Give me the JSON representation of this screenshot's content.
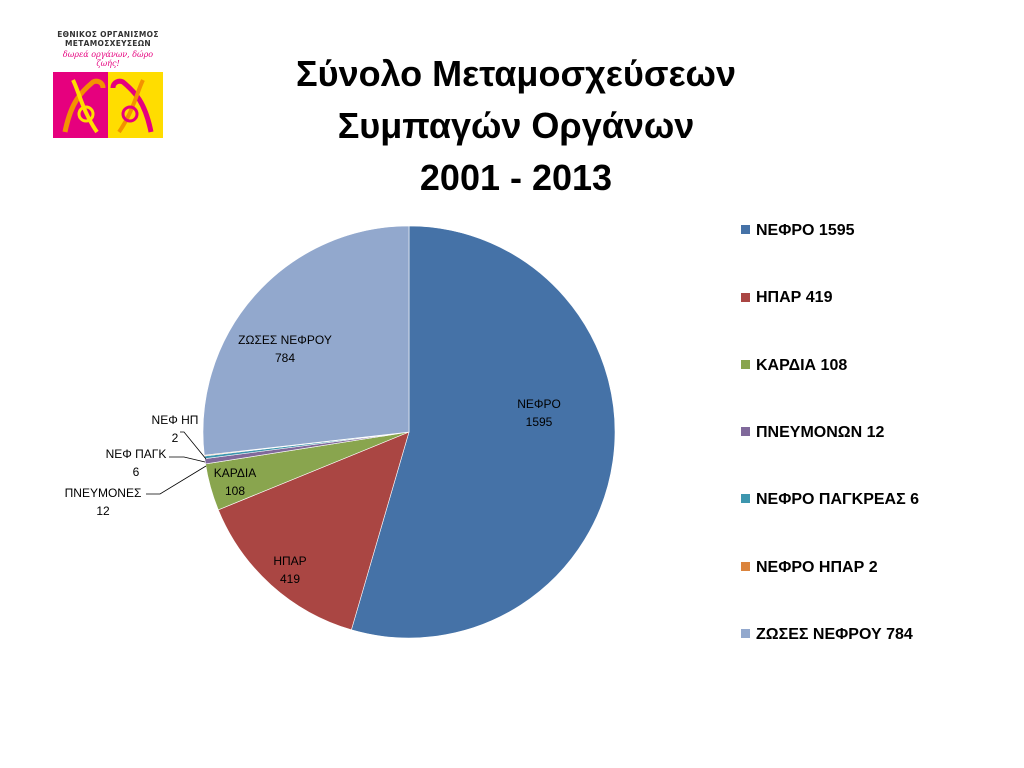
{
  "logo": {
    "org_line1": "ΕΘΝΙΚΟΣ ΟΡΓΑΝΙΣΜΟΣ",
    "org_line2": "ΜΕΤΑΜΟΣΧΕΥΣΕΩΝ",
    "motto": "δωρεά οργάνων, δώρο ζωής!",
    "colors": {
      "magenta": "#e6007e",
      "yellow": "#ffdd00",
      "orange": "#f39200"
    }
  },
  "title_lines": [
    "Σύνολο Μεταμοσχεύσεων",
    "Συμπαγών Οργάνων",
    "2001 - 2013"
  ],
  "chart_data": {
    "type": "pie",
    "title": "Σύνολο Μεταμοσχεύσεων Συμπαγών Οργάνων 2001 - 2013",
    "legend_position": "right",
    "slices": [
      {
        "label": "ΝΕΦΡΟ",
        "value": 1595,
        "legend": "ΝΕΦΡΟ 1595",
        "data_label": [
          "ΝΕΦΡΟ",
          "1595"
        ],
        "color": "#4572a7"
      },
      {
        "label": "ΗΠΑΡ",
        "value": 419,
        "legend": "ΗΠΑΡ 419",
        "data_label": [
          "ΗΠΑΡ",
          "419"
        ],
        "color": "#aa4643"
      },
      {
        "label": "ΚΑΡΔΙΑ",
        "value": 108,
        "legend": "ΚΑΡΔΙΑ 108",
        "data_label": [
          "ΚΑΡΔΙΑ",
          "108"
        ],
        "color": "#89a54e"
      },
      {
        "label": "ΠΝΕΥΜΟΝΩΝ",
        "value": 12,
        "legend": "ΠΝΕΥΜΟΝΩΝ 12",
        "data_label": [
          "ΠΝΕΥΜΟΝΕΣ",
          "12"
        ],
        "color": "#80699b"
      },
      {
        "label": "ΝΕΦΡΟ ΠΑΓΚΡΕΑΣ",
        "value": 6,
        "legend": "ΝΕΦΡΟ ΠΑΓΚΡΕΑΣ 6",
        "data_label": [
          "ΝΕΦ ΠΑΓΚ",
          "6"
        ],
        "color": "#3d96ae"
      },
      {
        "label": "ΝΕΦΡΟ ΗΠΑΡ",
        "value": 2,
        "legend": "ΝΕΦΡΟ ΗΠΑΡ 2",
        "data_label": [
          "ΝΕΦ ΗΠ",
          "2"
        ],
        "color": "#db843d"
      },
      {
        "label": "ΖΩΣΕΣ ΝΕΦΡΟΥ",
        "value": 784,
        "legend": "ΖΩΣΕΣ ΝΕΦΡΟΥ 784",
        "data_label": [
          "ΖΩΣΕΣ ΝΕΦΡΟΥ",
          "784"
        ],
        "color": "#92a8cd"
      }
    ]
  }
}
